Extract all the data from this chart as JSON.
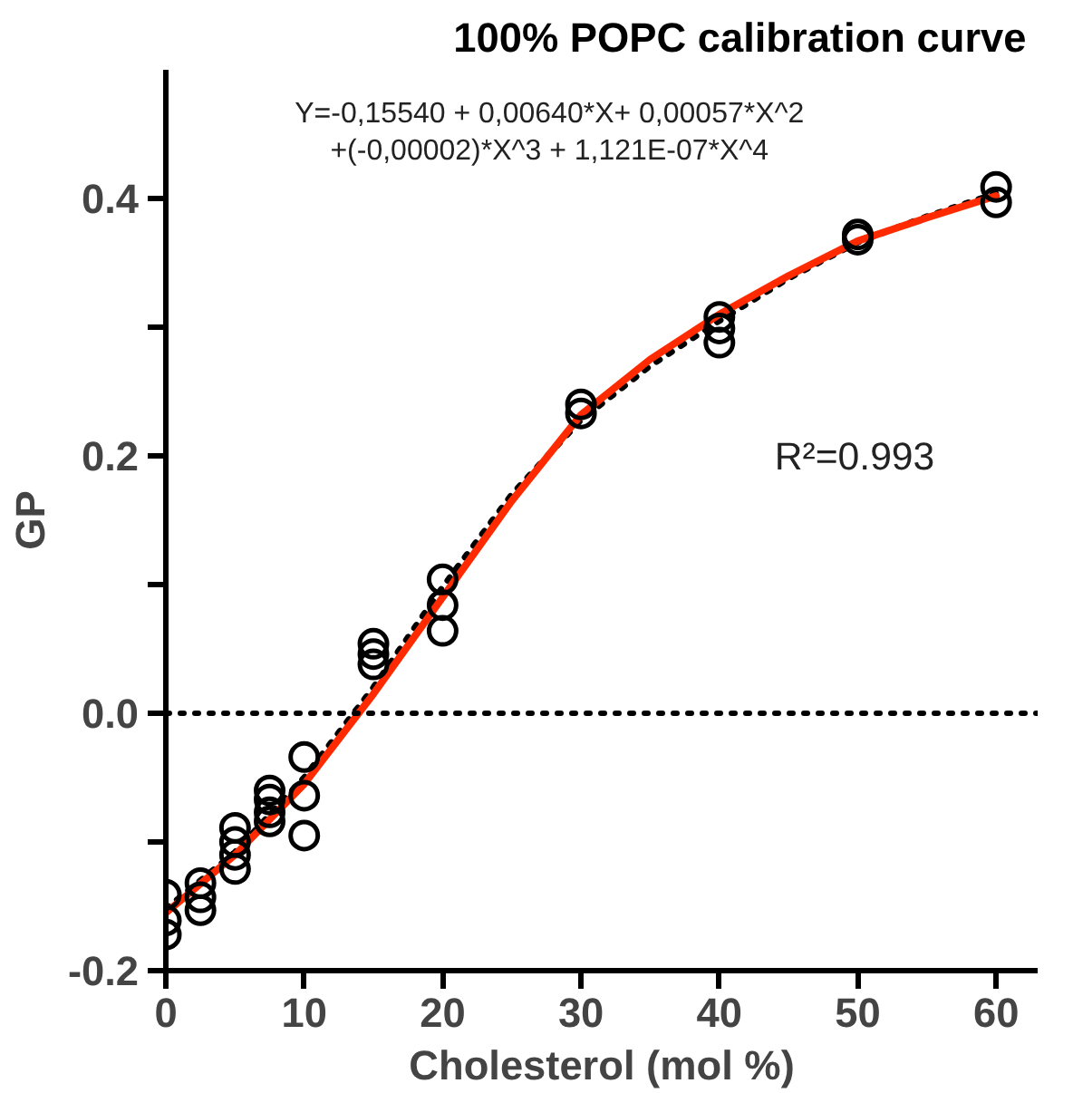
{
  "chart_data": {
    "type": "scatter",
    "title": "100% POPC  calibration curve",
    "xlabel": "Cholesterol (mol %)",
    "ylabel": "GP",
    "annotations": [
      "Y=-0,15540 + 0,00640*X+ 0,00057*X^2\n+(-0,00002)*X^3 + 1,121E-07*X^4",
      "R²=0.993"
    ],
    "xlim": [
      0,
      63
    ],
    "ylim": [
      -0.2,
      0.5
    ],
    "xticks": [
      0,
      10,
      20,
      30,
      40,
      50,
      60
    ],
    "yticks": [
      {
        "value": -0.2,
        "label": "-0.2"
      },
      {
        "value": -0.1,
        "label": null
      },
      {
        "value": 0,
        "label": "0.0"
      },
      {
        "value": 0.1,
        "label": null
      },
      {
        "value": 0.2,
        "label": "0.2"
      },
      {
        "value": 0.3,
        "label": null
      },
      {
        "value": 0.4,
        "label": "0.4"
      }
    ],
    "grid": false,
    "ref_lines": [
      {
        "axis": "y",
        "value": 0,
        "color": "#000000",
        "line_style": "dotted"
      }
    ],
    "series": [
      {
        "type": "line",
        "color": "#000000",
        "line_style": "dotted",
        "marker": "none",
        "x": [
          0,
          5,
          10,
          15,
          20,
          25,
          30,
          35,
          40,
          45,
          50,
          55,
          60
        ],
        "values": [
          -0.152,
          -0.108,
          -0.05,
          0.02,
          0.098,
          0.17,
          0.228,
          0.27,
          0.305,
          0.338,
          0.366,
          0.386,
          0.404
        ]
      },
      {
        "type": "line",
        "color": "#ff2a00",
        "line_style": "solid",
        "marker": "none",
        "x": [
          0,
          5,
          10,
          15,
          20,
          25,
          30,
          35,
          40,
          45,
          50,
          55,
          60
        ],
        "values": [
          -0.155,
          -0.11,
          -0.055,
          0.015,
          0.09,
          0.165,
          0.232,
          0.275,
          0.31,
          0.34,
          0.367,
          0.385,
          0.402
        ]
      },
      {
        "color": "#000000",
        "marker": "circle",
        "x": [
          0,
          0,
          0,
          2.5,
          2.5,
          2.5,
          5,
          5,
          5,
          5,
          7.5,
          7.5,
          7.5,
          7.5,
          10,
          10,
          10,
          15,
          15,
          15,
          20,
          20,
          20,
          30,
          30,
          40,
          40,
          40,
          50,
          50,
          60,
          60
        ],
        "values": [
          -0.141,
          -0.161,
          -0.172,
          -0.132,
          -0.143,
          -0.153,
          -0.089,
          -0.1,
          -0.11,
          -0.121,
          -0.06,
          -0.067,
          -0.077,
          -0.084,
          -0.034,
          -0.064,
          -0.095,
          0.054,
          0.046,
          0.038,
          0.104,
          0.084,
          0.064,
          0.24,
          0.233,
          0.308,
          0.299,
          0.288,
          0.372,
          0.368,
          0.409,
          0.397
        ]
      }
    ]
  }
}
